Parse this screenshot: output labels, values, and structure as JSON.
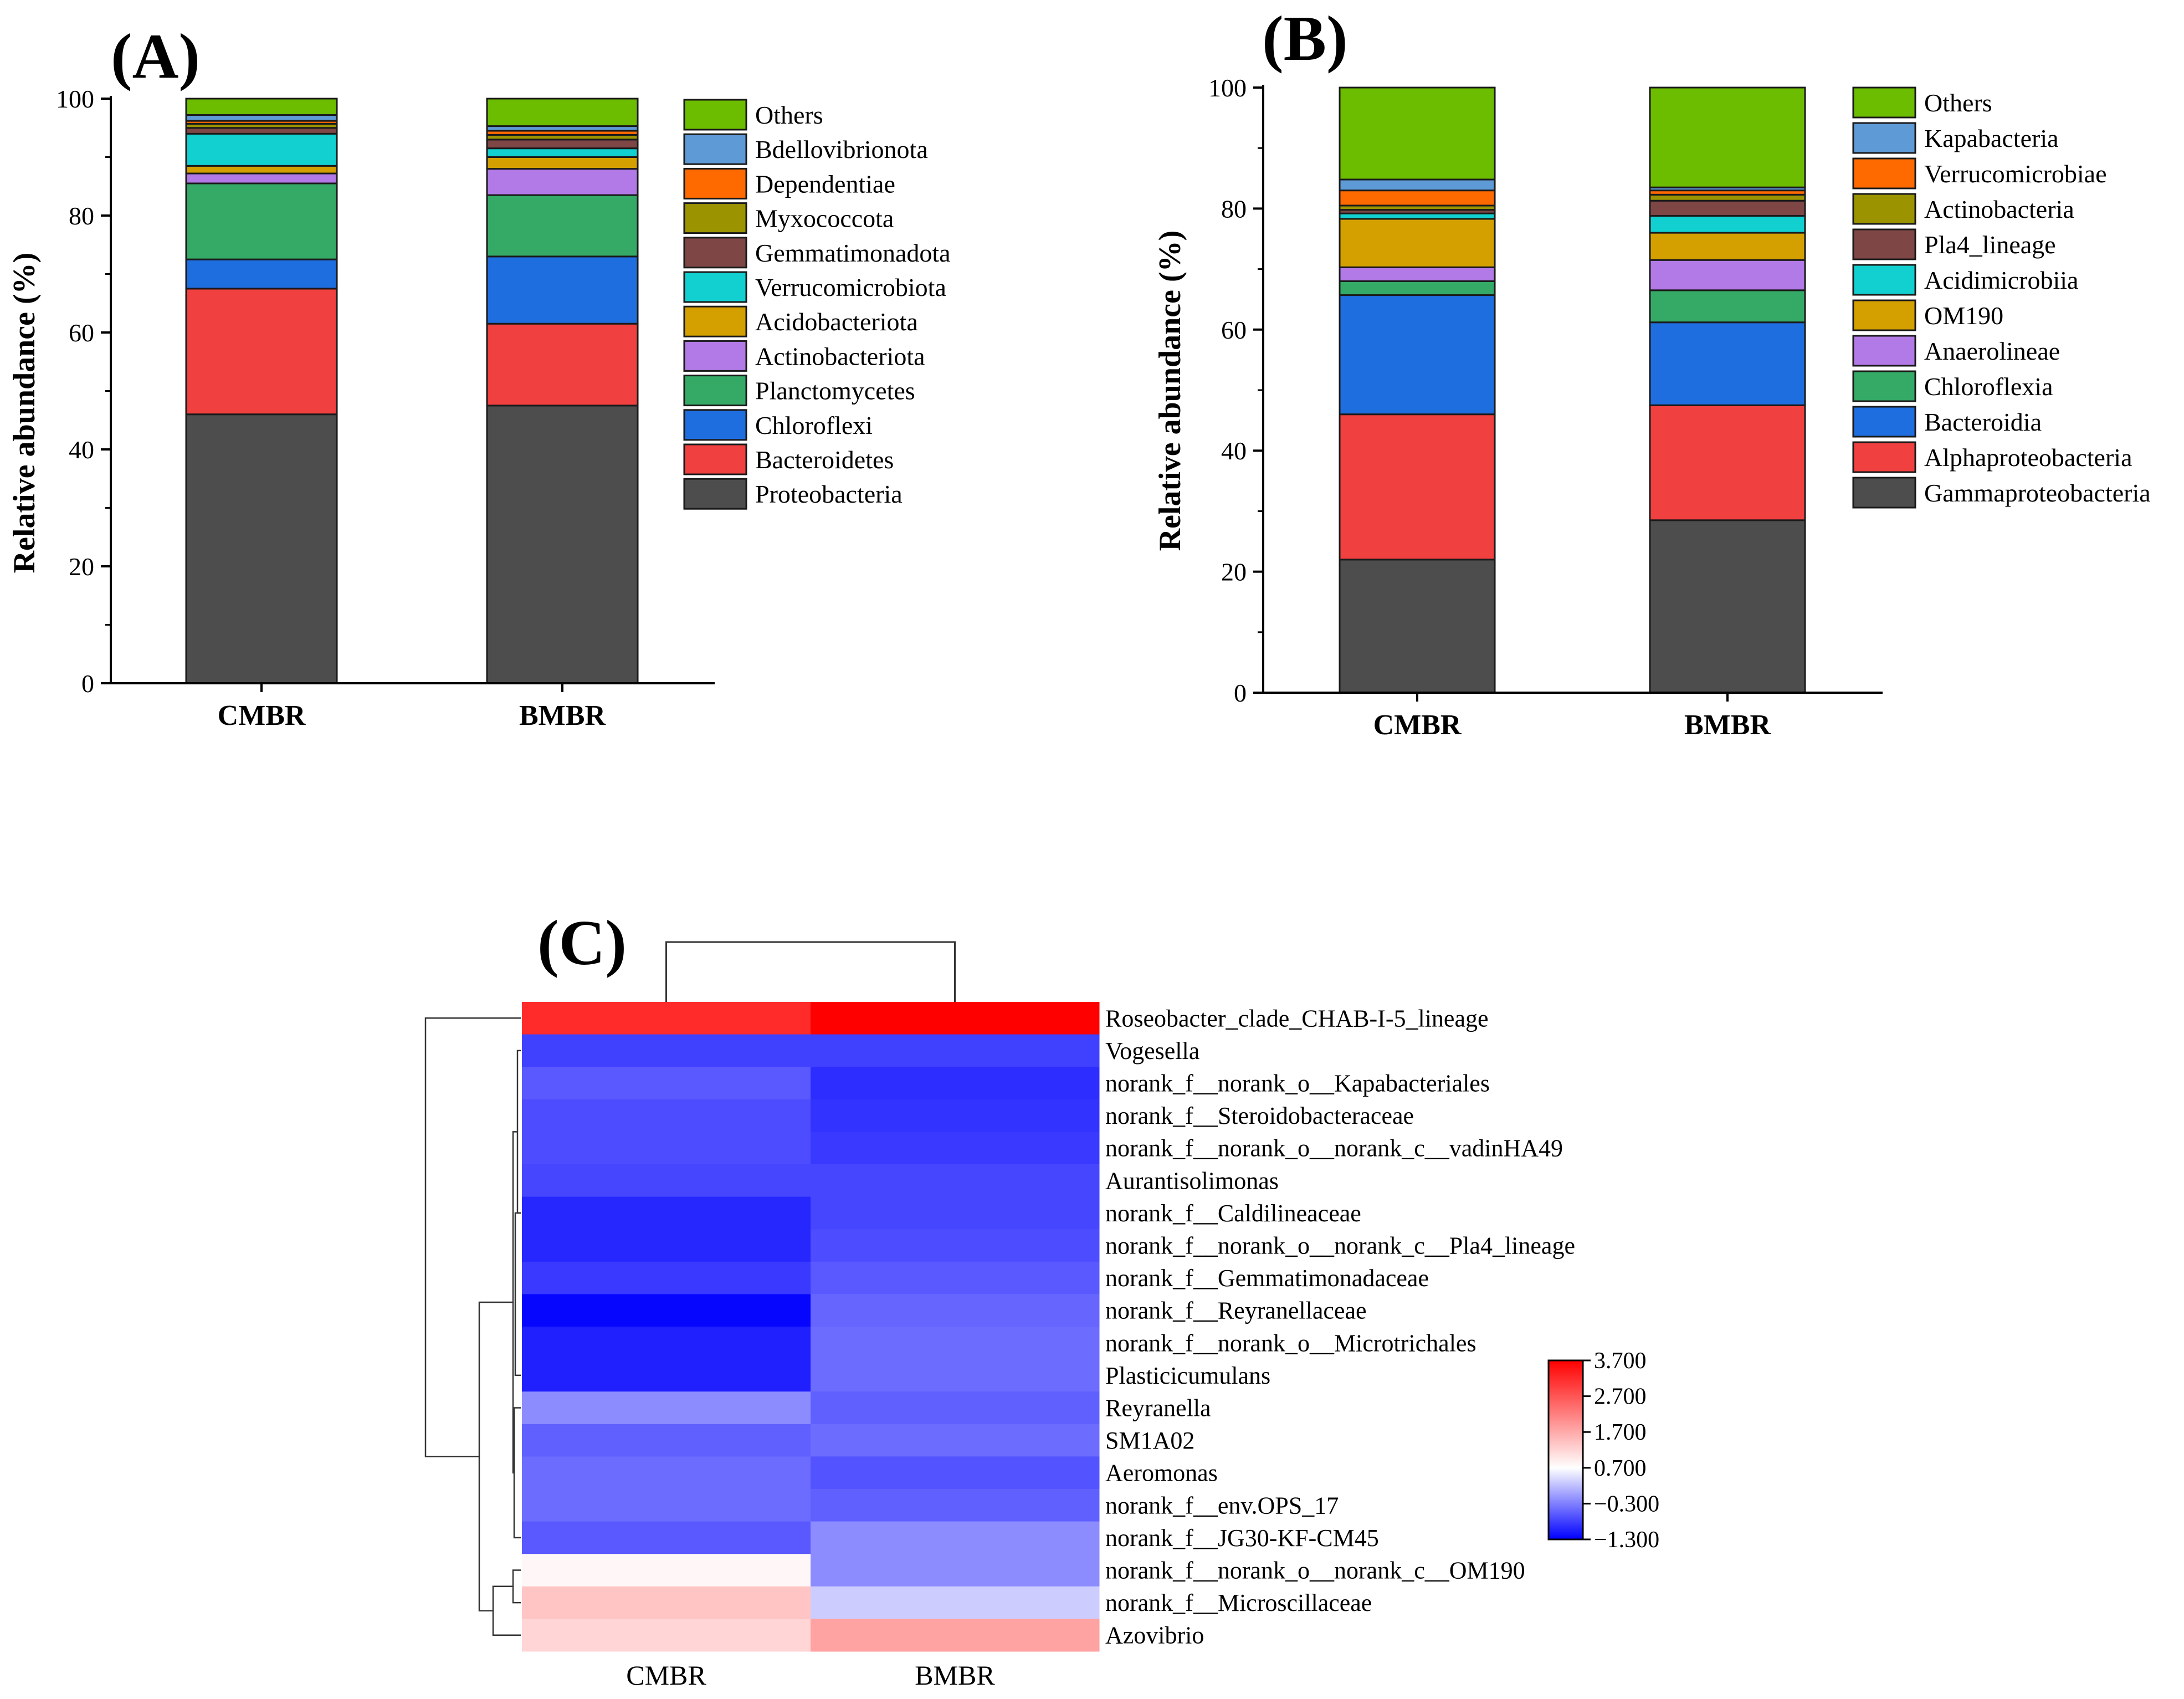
{
  "chart_data": [
    {
      "type": "bar",
      "stacked": true,
      "panel_label": "(A)",
      "ylabel": "Relative abundance (%)",
      "ylim": [
        0,
        100
      ],
      "yticks": [
        "0",
        "20",
        "40",
        "60",
        "80",
        "100"
      ],
      "categories": [
        "CMBR",
        "BMBR"
      ],
      "legend_position": "right",
      "series": [
        {
          "name": "Proteobacteria",
          "color": "#4d4d4d",
          "values": [
            46.0,
            47.5
          ]
        },
        {
          "name": "Bacteroidetes",
          "color": "#f04040",
          "values": [
            21.5,
            14.0
          ]
        },
        {
          "name": "Chloroflexi",
          "color": "#1f6ee0",
          "values": [
            5.0,
            11.5
          ]
        },
        {
          "name": "Planctomycetes",
          "color": "#34aa66",
          "values": [
            13.0,
            10.5
          ]
        },
        {
          "name": "Actinobacteriota",
          "color": "#b27ae6",
          "values": [
            1.7,
            4.5
          ]
        },
        {
          "name": "Acidobacteriota",
          "color": "#d4a000",
          "values": [
            1.3,
            2.0
          ]
        },
        {
          "name": "Verrucomicrobiota",
          "color": "#12d0d0",
          "values": [
            5.5,
            1.5
          ]
        },
        {
          "name": "Gemmatimonadota",
          "color": "#7f4646",
          "values": [
            1.0,
            1.5
          ]
        },
        {
          "name": "Myxococcota",
          "color": "#9b9400",
          "values": [
            0.7,
            0.8
          ]
        },
        {
          "name": "Dependentiae",
          "color": "#ff6a00",
          "values": [
            0.5,
            0.7
          ]
        },
        {
          "name": "Bdellovibrionota",
          "color": "#5e9ad6",
          "values": [
            1.0,
            0.8
          ]
        },
        {
          "name": "Others",
          "color": "#6cbc00",
          "values": [
            2.8,
            4.7
          ]
        }
      ]
    },
    {
      "type": "bar",
      "stacked": true,
      "panel_label": "(B)",
      "ylabel": "Relative abundance (%)",
      "ylim": [
        0,
        100
      ],
      "yticks": [
        "0",
        "20",
        "40",
        "60",
        "80",
        "100"
      ],
      "categories": [
        "CMBR",
        "BMBR"
      ],
      "legend_position": "right",
      "series": [
        {
          "name": "Gammaproteobacteria",
          "color": "#4d4d4d",
          "values": [
            22.0,
            28.5
          ]
        },
        {
          "name": "Alphaproteobacteria",
          "color": "#f04040",
          "values": [
            24.0,
            19.0
          ]
        },
        {
          "name": "Bacteroidia",
          "color": "#1f6ee0",
          "values": [
            19.7,
            13.7
          ]
        },
        {
          "name": "Chloroflexia",
          "color": "#34aa66",
          "values": [
            2.3,
            5.3
          ]
        },
        {
          "name": "Anaerolineae",
          "color": "#b27ae6",
          "values": [
            2.3,
            5.0
          ]
        },
        {
          "name": "OM190",
          "color": "#d4a000",
          "values": [
            8.0,
            4.5
          ]
        },
        {
          "name": "Acidimicrobiia",
          "color": "#12d0d0",
          "values": [
            0.9,
            2.8
          ]
        },
        {
          "name": "Pla4_lineage",
          "color": "#7f4646",
          "values": [
            0.6,
            2.5
          ]
        },
        {
          "name": "Actinobacteria",
          "color": "#9b9400",
          "values": [
            0.7,
            1.0
          ]
        },
        {
          "name": "Verrucomicrobiae",
          "color": "#ff6a00",
          "values": [
            2.5,
            0.7
          ]
        },
        {
          "name": "Kapabacteria",
          "color": "#5e9ad6",
          "values": [
            1.8,
            0.5
          ]
        },
        {
          "name": "Others",
          "color": "#6cbc00",
          "values": [
            15.2,
            16.5
          ]
        }
      ]
    },
    {
      "type": "heatmap",
      "panel_label": "(C)",
      "columns": [
        "CMBR",
        "BMBR"
      ],
      "rows": [
        "Roseobacter_clade_CHAB-I-5_lineage",
        "Vogesella",
        "norank_f__norank_o__Kapabacteriales",
        "norank_f__Steroidobacteraceae",
        "norank_f__norank_o__norank_c__vadinHA49",
        "Aurantisolimonas",
        "norank_f__Caldilineaceae",
        "norank_f__norank_o__norank_c__Pla4_lineage",
        "norank_f__Gemmatimonadaceae",
        "norank_f__Reyranellaceae",
        "norank_f__norank_o__Microtrichales",
        "Plasticicumulans",
        "Reyranella",
        "SM1A02",
        "Aeromonas",
        "norank_f__env.OPS_17",
        "norank_f__JG30-KF-CM45",
        "norank_f__norank_o__norank_c__OM190",
        "norank_f__Microscillaceae",
        "Azovibrio"
      ],
      "values": [
        [
          3.2,
          3.7
        ],
        [
          -0.8,
          -0.8
        ],
        [
          -0.6,
          -0.95
        ],
        [
          -0.7,
          -0.9
        ],
        [
          -0.7,
          -0.85
        ],
        [
          -0.75,
          -0.75
        ],
        [
          -1.0,
          -0.75
        ],
        [
          -1.0,
          -0.7
        ],
        [
          -0.85,
          -0.6
        ],
        [
          -1.25,
          -0.5
        ],
        [
          -1.05,
          -0.45
        ],
        [
          -1.05,
          -0.45
        ],
        [
          -0.2,
          -0.55
        ],
        [
          -0.55,
          -0.45
        ],
        [
          -0.45,
          -0.65
        ],
        [
          -0.45,
          -0.55
        ],
        [
          -0.6,
          -0.2
        ],
        [
          0.8,
          -0.2
        ],
        [
          1.4,
          0.3
        ],
        [
          1.2,
          1.8
        ]
      ],
      "colorbar": {
        "min": -1.3,
        "max": 3.7,
        "ticks": [
          "3.700",
          "2.700",
          "1.700",
          "0.700",
          "−0.300",
          "−1.300"
        ],
        "colors": [
          "#0000ff",
          "#ffffff",
          "#ff0000"
        ]
      }
    }
  ]
}
